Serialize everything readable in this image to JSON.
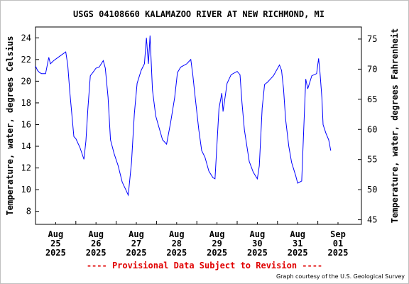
{
  "colors": {
    "line": "#0000ff",
    "provisional": "#e00000",
    "axis": "#000000"
  },
  "chart_data": {
    "type": "line",
    "title": "USGS 04108660 KALAMAZOO RIVER AT NEW RICHMOND, MI",
    "ylabel": "Temperature, water, degrees Celsius",
    "y2label": "Temperature, water, degrees Fahrenheit",
    "ylim": [
      6.8,
      25.0
    ],
    "yticks": [
      8,
      10,
      12,
      14,
      16,
      18,
      20,
      22,
      24
    ],
    "y2ticks": [
      45,
      50,
      55,
      60,
      65,
      70,
      75
    ],
    "xlim": [
      0,
      7.15
    ],
    "xticks": [
      {
        "x": 0.5,
        "month": "Aug",
        "day": "25",
        "year": "2025"
      },
      {
        "x": 1.5,
        "month": "Aug",
        "day": "26",
        "year": "2025"
      },
      {
        "x": 2.5,
        "month": "Aug",
        "day": "27",
        "year": "2025"
      },
      {
        "x": 3.5,
        "month": "Aug",
        "day": "28",
        "year": "2025"
      },
      {
        "x": 4.5,
        "month": "Aug",
        "day": "29",
        "year": "2025"
      },
      {
        "x": 5.5,
        "month": "Aug",
        "day": "30",
        "year": "2025"
      },
      {
        "x": 6.5,
        "month": "Aug",
        "day": "31",
        "year": "2025"
      },
      {
        "x": 7.5,
        "month": "Sep",
        "day": "01",
        "year": "2025"
      }
    ],
    "grid": false,
    "legend": "none",
    "series": [
      {
        "points": [
          [
            0.0,
            21.4
          ],
          [
            0.05,
            21.0
          ],
          [
            0.1,
            20.8
          ],
          [
            0.15,
            20.7
          ],
          [
            0.25,
            20.7
          ],
          [
            0.33,
            22.2
          ],
          [
            0.37,
            21.6
          ],
          [
            0.45,
            21.9
          ],
          [
            0.6,
            22.3
          ],
          [
            0.75,
            22.7
          ],
          [
            0.8,
            21.5
          ],
          [
            0.85,
            19.0
          ],
          [
            0.9,
            17.0
          ],
          [
            0.95,
            14.9
          ],
          [
            1.0,
            14.7
          ],
          [
            1.1,
            13.9
          ],
          [
            1.2,
            12.8
          ],
          [
            1.25,
            14.5
          ],
          [
            1.3,
            17.5
          ],
          [
            1.36,
            20.5
          ],
          [
            1.42,
            20.8
          ],
          [
            1.5,
            21.2
          ],
          [
            1.58,
            21.3
          ],
          [
            1.68,
            21.9
          ],
          [
            1.73,
            21.2
          ],
          [
            1.8,
            18.5
          ],
          [
            1.86,
            14.6
          ],
          [
            1.95,
            13.3
          ],
          [
            2.05,
            12.2
          ],
          [
            2.15,
            10.7
          ],
          [
            2.25,
            9.9
          ],
          [
            2.3,
            9.5
          ],
          [
            2.38,
            12.5
          ],
          [
            2.45,
            17.0
          ],
          [
            2.52,
            19.8
          ],
          [
            2.62,
            21.0
          ],
          [
            2.7,
            21.6
          ],
          [
            2.75,
            24.0
          ],
          [
            2.8,
            21.6
          ],
          [
            2.84,
            24.2
          ],
          [
            2.9,
            19.2
          ],
          [
            2.98,
            16.8
          ],
          [
            3.05,
            15.9
          ],
          [
            3.15,
            14.6
          ],
          [
            3.25,
            14.2
          ],
          [
            3.35,
            16.2
          ],
          [
            3.45,
            18.5
          ],
          [
            3.52,
            20.8
          ],
          [
            3.6,
            21.3
          ],
          [
            3.75,
            21.6
          ],
          [
            3.85,
            22.0
          ],
          [
            3.9,
            20.6
          ],
          [
            3.95,
            18.8
          ],
          [
            4.05,
            15.5
          ],
          [
            4.12,
            13.6
          ],
          [
            4.2,
            13.0
          ],
          [
            4.3,
            11.7
          ],
          [
            4.4,
            11.1
          ],
          [
            4.45,
            11.0
          ],
          [
            4.55,
            17.5
          ],
          [
            4.62,
            18.9
          ],
          [
            4.65,
            17.2
          ],
          [
            4.75,
            19.8
          ],
          [
            4.85,
            20.6
          ],
          [
            5.0,
            20.9
          ],
          [
            5.07,
            20.6
          ],
          [
            5.12,
            18.0
          ],
          [
            5.18,
            15.5
          ],
          [
            5.3,
            12.6
          ],
          [
            5.4,
            11.6
          ],
          [
            5.5,
            11.0
          ],
          [
            5.55,
            12.2
          ],
          [
            5.62,
            17.5
          ],
          [
            5.68,
            19.7
          ],
          [
            5.75,
            19.9
          ],
          [
            5.9,
            20.5
          ],
          [
            6.05,
            21.5
          ],
          [
            6.1,
            21.0
          ],
          [
            6.15,
            19.3
          ],
          [
            6.2,
            16.5
          ],
          [
            6.28,
            14.0
          ],
          [
            6.35,
            12.5
          ],
          [
            6.45,
            11.3
          ],
          [
            6.5,
            10.6
          ],
          [
            6.6,
            10.8
          ],
          [
            6.65,
            15.5
          ],
          [
            6.7,
            20.2
          ],
          [
            6.75,
            19.3
          ],
          [
            6.85,
            20.5
          ],
          [
            6.97,
            20.7
          ],
          [
            7.02,
            22.1
          ],
          [
            7.05,
            21.0
          ],
          [
            7.1,
            18.5
          ],
          [
            7.13,
            16.0
          ],
          [
            7.2,
            15.2
          ],
          [
            7.27,
            14.6
          ],
          [
            7.32,
            13.6
          ]
        ]
      }
    ],
    "footer": {
      "provisional": "---- Provisional Data Subject to Revision ----",
      "courtesy": "Graph courtesy of the U.S. Geological Survey"
    }
  }
}
